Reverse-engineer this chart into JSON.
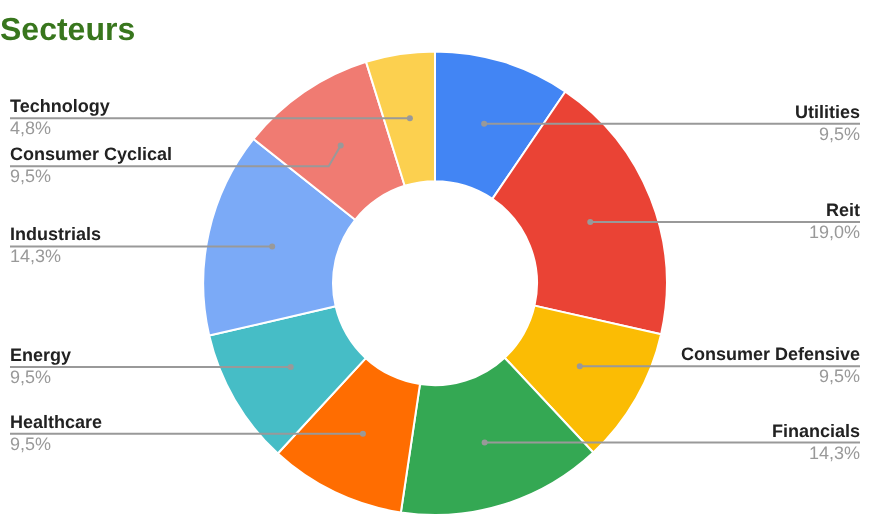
{
  "chart_data": {
    "type": "donut",
    "title": "Secteurs",
    "categories": [
      "Utilities",
      "Reit",
      "Consumer Defensive",
      "Financials",
      "Healthcare",
      "Energy",
      "Industrials",
      "Consumer Cyclical",
      "Technology"
    ],
    "values": [
      9.5,
      19.0,
      9.5,
      14.3,
      9.5,
      9.5,
      14.3,
      9.5,
      4.8
    ],
    "value_labels": [
      "9,5%",
      "19,0%",
      "9,5%",
      "14,3%",
      "9,5%",
      "9,5%",
      "14,3%",
      "9,5%",
      "4,8%"
    ],
    "colors": [
      "#4285f4",
      "#ea4335",
      "#fbbc04",
      "#34a853",
      "#ff6d01",
      "#46bdc6",
      "#7baaf7",
      "#f07b72",
      "#fcd04f"
    ],
    "legend": false
  }
}
